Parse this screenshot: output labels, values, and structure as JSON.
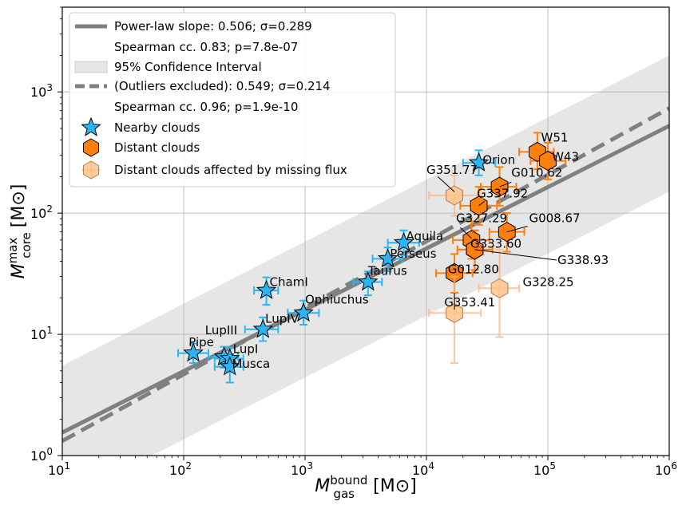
{
  "chart_data": {
    "type": "scatter",
    "scale": {
      "x": "log",
      "y": "log"
    },
    "xlim": [
      10,
      1000000
    ],
    "ylim": [
      1,
      5000
    ],
    "xlabel": {
      "symbol": "M",
      "sup": "bound",
      "sub": "gas",
      "unit": "[M⊙]"
    },
    "ylabel": {
      "symbol": "M",
      "sup": "max",
      "sub": "core",
      "unit": "[M⊙]"
    },
    "x_ticks": [
      {
        "value": 10,
        "base": "10",
        "exp": "1"
      },
      {
        "value": 100,
        "base": "10",
        "exp": "2"
      },
      {
        "value": 1000,
        "base": "10",
        "exp": "3"
      },
      {
        "value": 10000,
        "base": "10",
        "exp": "4"
      },
      {
        "value": 100000,
        "base": "10",
        "exp": "5"
      },
      {
        "value": 1000000,
        "base": "10",
        "exp": "6"
      }
    ],
    "y_ticks": [
      {
        "value": 1,
        "base": "10",
        "exp": "0"
      },
      {
        "value": 10,
        "base": "10",
        "exp": "1"
      },
      {
        "value": 100,
        "base": "10",
        "exp": "2"
      },
      {
        "value": 1000,
        "base": "10",
        "exp": "3"
      }
    ],
    "grid": true,
    "legend_position": "top-left",
    "legend": [
      "Power-law slope: 0.506; σ=0.289",
      "Spearman cc. 0.83; p=7.8e-07",
      "95% Confidence Interval",
      "(Outliers excluded): 0.549; σ=0.214",
      "Spearman cc. 0.96; p=1.9e-10",
      "Nearby clouds",
      "Distant clouds",
      "Distant clouds affected by missing flux"
    ],
    "fits": {
      "all": {
        "slope": 0.506,
        "intercept_at_x10": 1.55
      },
      "outliers_excluded": {
        "slope": 0.549,
        "intercept_at_x10": 1.32
      },
      "confidence_band": {
        "upper_at_x10": 5.5,
        "upper_at_x1e6": 2000,
        "lower_at_x10": 0.42,
        "lower_at_x1e6": 150
      }
    },
    "series": [
      {
        "name": "Nearby clouds",
        "marker": "star",
        "points": [
          {
            "label": "Pipe",
            "x": 120,
            "y": 7,
            "xerr": [
              90,
              160
            ],
            "yerr": [
              5.8,
              8.4
            ]
          },
          {
            "label": "LupIII",
            "x": 215,
            "y": 6.5,
            "xerr": [
              160,
              280
            ],
            "yerr": [
              5.3,
              7.9
            ]
          },
          {
            "label": "LupI",
            "x": 240,
            "y": 6.3,
            "xerr": [
              180,
              310
            ],
            "yerr": [
              5.0,
              7.7
            ]
          },
          {
            "label": "Musca",
            "x": 240,
            "y": 5.4,
            "xerr": [
              180,
              310
            ],
            "yerr": [
              4.0,
              6.8
            ]
          },
          {
            "label": "LupIV",
            "x": 450,
            "y": 11,
            "xerr": [
              320,
              600
            ],
            "yerr": [
              8.8,
              13.8
            ]
          },
          {
            "label": "ChamI",
            "x": 480,
            "y": 23,
            "xerr": [
              380,
              600
            ],
            "yerr": [
              17.5,
              29.5
            ]
          },
          {
            "label": "Ophiuchus",
            "x": 970,
            "y": 15,
            "xerr": [
              720,
              1300
            ],
            "yerr": [
              12,
              19
            ]
          },
          {
            "label": "Taurus",
            "x": 3300,
            "y": 27,
            "xerr": [
              2500,
              4300
            ],
            "yerr": [
              21,
              33
            ]
          },
          {
            "label": "Perseus",
            "x": 4800,
            "y": 42,
            "xerr": [
              3600,
              6300
            ],
            "yerr": [
              33,
              52
            ]
          },
          {
            "label": "Aquila",
            "x": 6500,
            "y": 57,
            "xerr": [
              4800,
              8700
            ],
            "yerr": [
              45,
              72
            ]
          },
          {
            "label": "Orion",
            "x": 27000,
            "y": 260,
            "xerr": [
              20000,
              37000
            ],
            "yerr": [
              205,
              330
            ]
          }
        ]
      },
      {
        "name": "Distant clouds",
        "marker": "hexagon",
        "points": [
          {
            "label": "W51",
            "x": 82000,
            "y": 320,
            "xerr": [
              58000,
              112000
            ],
            "yerr": [
              230,
              460
            ]
          },
          {
            "label": "W43",
            "x": 100000,
            "y": 270,
            "xerr": [
              72000,
              140000
            ],
            "yerr": [
              190,
              380
            ]
          },
          {
            "label": "G010.62",
            "x": 40000,
            "y": 165,
            "xerr": [
              28000,
              55000
            ],
            "yerr": [
              115,
              240
            ]
          },
          {
            "label": "G337.92",
            "x": 27000,
            "y": 115,
            "xerr": [
              19000,
              38000
            ],
            "yerr": [
              80,
              165
            ]
          },
          {
            "label": "G008.67",
            "x": 46000,
            "y": 70,
            "xerr": [
              33000,
              64000
            ],
            "yerr": [
              48,
              100
            ]
          },
          {
            "label": "G327.29",
            "x": 23500,
            "y": 60,
            "xerr": [
              16500,
              33000
            ],
            "yerr": [
              42,
              86
            ]
          },
          {
            "label": "G333.60",
            "x": 25000,
            "y": 50,
            "xerr": [
              18000,
              35000
            ],
            "yerr": [
              34,
              72
            ]
          },
          {
            "label": "G338.93",
            "x": 25000,
            "y": 50,
            "xerr": [
              18000,
              35000
            ],
            "yerr": [
              34,
              72
            ]
          },
          {
            "label": "G012.80",
            "x": 17000,
            "y": 32,
            "xerr": [
              12000,
              24000
            ],
            "yerr": [
              22,
              46
            ]
          }
        ]
      },
      {
        "name": "Distant clouds affected by missing flux",
        "marker": "hexagon-faded",
        "points": [
          {
            "label": "G351.77",
            "x": 17000,
            "y": 140,
            "xerr": [
              10500,
              29000
            ],
            "yerr": [
              95,
              205
            ]
          },
          {
            "label": "G328.25",
            "x": 40000,
            "y": 24,
            "xerr": [
              27000,
              58000
            ],
            "yerr": [
              9.5,
              50
            ]
          },
          {
            "label": "G353.41",
            "x": 17000,
            "y": 15,
            "xerr": [
              10500,
              28000
            ],
            "yerr": [
              5.8,
              30
            ]
          }
        ]
      }
    ],
    "annotations": [
      {
        "text": "Orion",
        "x": 29000,
        "y": 255
      },
      {
        "text": "W51",
        "x": 88000,
        "y": 390
      },
      {
        "text": "W43",
        "x": 108000,
        "y": 270
      },
      {
        "text": "G351.77",
        "x": 10000,
        "y": 210
      },
      {
        "text": "G010.62",
        "x": 50000,
        "y": 200
      },
      {
        "text": "G337.92",
        "x": 26000,
        "y": 135
      },
      {
        "text": "G327.29",
        "x": 17500,
        "y": 84
      },
      {
        "text": "G008.67",
        "x": 70000,
        "y": 84
      },
      {
        "text": "Aquila",
        "x": 6800,
        "y": 60
      },
      {
        "text": "Perseus",
        "x": 5000,
        "y": 43
      },
      {
        "text": "G333.60",
        "x": 23000,
        "y": 52
      },
      {
        "text": "G338.93",
        "x": 120000,
        "y": 38
      },
      {
        "text": "Taurus",
        "x": 3300,
        "y": 31
      },
      {
        "text": "G012.80",
        "x": 15000,
        "y": 32
      },
      {
        "text": "G328.25",
        "x": 62000,
        "y": 25
      },
      {
        "text": "ChamI",
        "x": 510,
        "y": 25
      },
      {
        "text": "Ophiuchus",
        "x": 1000,
        "y": 18
      },
      {
        "text": "G353.41",
        "x": 14000,
        "y": 17
      },
      {
        "text": "LupIV",
        "x": 470,
        "y": 12.5
      },
      {
        "text": "LupIII",
        "x": 150,
        "y": 10
      },
      {
        "text": "Pipe",
        "x": 110,
        "y": 8
      },
      {
        "text": "LupI",
        "x": 255,
        "y": 7
      },
      {
        "text": "Musca",
        "x": 250,
        "y": 5.3
      }
    ],
    "colors": {
      "nearby": "#29b6f6",
      "nearby_err": "#29b6f6",
      "distant": "#ff7f0e",
      "distant_err": "#ff7f0e",
      "missing_flux": "#ffc38a",
      "missing_flux_err": "#ffb37a",
      "fit_line": "#808080",
      "band": "#e6e6e6"
    }
  }
}
